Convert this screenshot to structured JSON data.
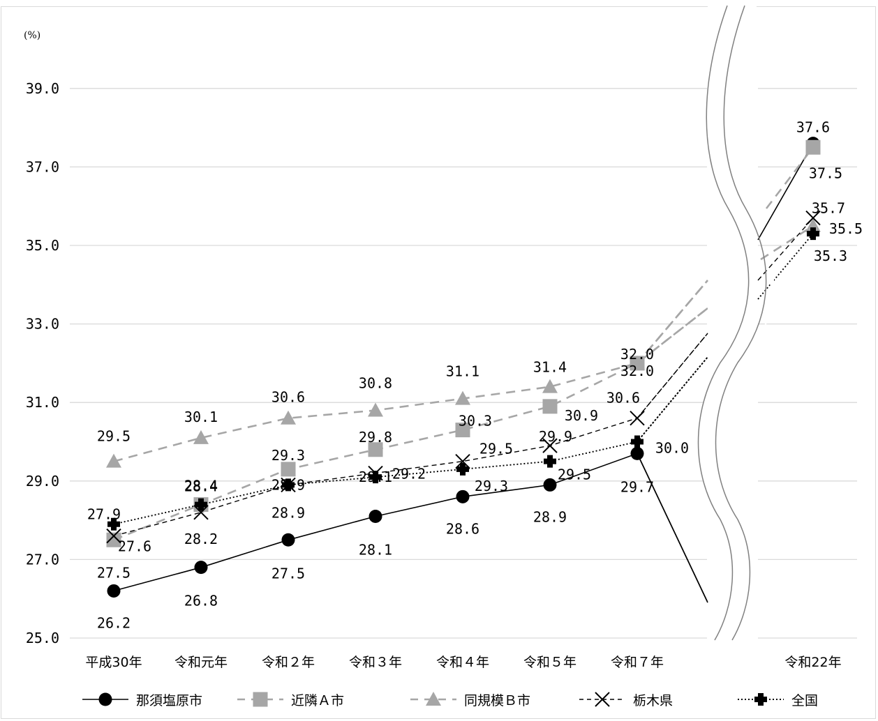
{
  "chart_data": {
    "type": "line",
    "unit_label": "(%)",
    "y_ticks": [
      "39.0",
      "37.0",
      "35.0",
      "33.0",
      "31.0",
      "29.0",
      "27.0",
      "25.0"
    ],
    "ylim": [
      25,
      39
    ],
    "categories": [
      "平成30年",
      "令和元年",
      "令和２年",
      "令和３年",
      "令和４年",
      "令和５年",
      "令和７年",
      "令和22年"
    ],
    "axis_break": "between 令和７年 and 令和22年",
    "grid": true,
    "legend_position": "bottom",
    "series": [
      {
        "name": "那須塩原市",
        "color": "#000000",
        "marker": "circle",
        "line": "solid",
        "values": [
          26.2,
          26.8,
          27.5,
          28.1,
          28.6,
          28.9,
          29.7,
          37.6
        ],
        "labels": [
          "26.2",
          "26.8",
          "27.5",
          "28.1",
          "28.6",
          "28.9",
          "29.7",
          "37.6"
        ]
      },
      {
        "name": "近隣Ａ市",
        "color": "#a6a6a6",
        "marker": "square",
        "line": "dashed",
        "values": [
          27.5,
          28.4,
          29.3,
          29.8,
          30.3,
          30.9,
          32.0,
          37.5
        ],
        "labels": [
          "27.5",
          "28.4",
          "29.3",
          "29.8",
          "30.3",
          "30.9",
          "32.0",
          "37.5"
        ]
      },
      {
        "name": "同規模Ｂ市",
        "color": "#a6a6a6",
        "marker": "triangle",
        "line": "dashed",
        "values": [
          29.5,
          30.1,
          30.6,
          30.8,
          31.1,
          31.4,
          32.0,
          35.5
        ],
        "labels": [
          "29.5",
          "30.1",
          "30.6",
          "30.8",
          "31.1",
          "31.4",
          "32.0",
          "35.5"
        ]
      },
      {
        "name": "栃木県",
        "color": "#000000",
        "marker": "x",
        "line": "dashed-fine",
        "values": [
          27.6,
          28.2,
          28.9,
          29.2,
          29.5,
          29.9,
          30.6,
          35.7
        ],
        "labels": [
          "27.6",
          "28.2",
          "28.9",
          "29.2",
          "29.5",
          "29.9",
          "30.6",
          "35.7"
        ]
      },
      {
        "name": "全国",
        "color": "#000000",
        "marker": "cross-diamond",
        "line": "dotted",
        "values": [
          27.9,
          28.4,
          28.9,
          29.1,
          29.3,
          29.5,
          30.0,
          35.3
        ],
        "labels": [
          "27.9",
          "28.4",
          "28.9",
          "29.1",
          "29.3",
          "29.5",
          "30.0",
          "35.3"
        ]
      }
    ]
  }
}
